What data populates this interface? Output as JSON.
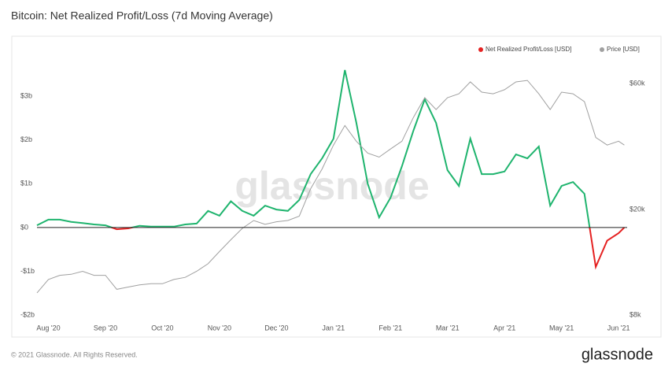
{
  "chart_data": {
    "type": "line",
    "title": "Bitcoin: Net Realized Profit/Loss (7d Moving Average)",
    "watermark": "glassnode",
    "footer": "© 2021 Glassnode. All Rights Reserved.",
    "logo": "glassnode",
    "x": [
      -0.2,
      0,
      0.2,
      0.4,
      0.6,
      0.8,
      1.0,
      1.2,
      1.4,
      1.6,
      1.8,
      2.0,
      2.2,
      2.4,
      2.6,
      2.8,
      3.0,
      3.2,
      3.4,
      3.6,
      3.8,
      4.0,
      4.2,
      4.4,
      4.6,
      4.8,
      5.0,
      5.2,
      5.4,
      5.6,
      5.8,
      6.0,
      6.2,
      6.4,
      6.6,
      6.8,
      7.0,
      7.2,
      7.4,
      7.6,
      7.8,
      8.0,
      8.2,
      8.4,
      8.6,
      8.8,
      9.0,
      9.2,
      9.4,
      9.6,
      9.8,
      10.0,
      10.1
    ],
    "xlim": [
      -0.2,
      10.15
    ],
    "xticks": [
      {
        "value": 0,
        "label": "Aug '20"
      },
      {
        "value": 1,
        "label": "Sep '20"
      },
      {
        "value": 2,
        "label": "Oct '20"
      },
      {
        "value": 3,
        "label": "Nov '20"
      },
      {
        "value": 4,
        "label": "Dec '20"
      },
      {
        "value": 5,
        "label": "Jan '21"
      },
      {
        "value": 6,
        "label": "Feb '21"
      },
      {
        "value": 7,
        "label": "Mar '21"
      },
      {
        "value": 8,
        "label": "Apr '21"
      },
      {
        "value": 9,
        "label": "May '21"
      },
      {
        "value": 10,
        "label": "Jun '21"
      }
    ],
    "ylim": [
      -2000000000,
      4300000000
    ],
    "yticks": [
      {
        "value": -2000000000,
        "label": "-$2b"
      },
      {
        "value": -1000000000,
        "label": "-$1b"
      },
      {
        "value": 0,
        "label": "$0"
      },
      {
        "value": 1000000000,
        "label": "$1b"
      },
      {
        "value": 2000000000,
        "label": "$2b"
      },
      {
        "value": 3000000000,
        "label": "$3b"
      }
    ],
    "y2lim": [
      8000,
      88000
    ],
    "y2scale": "log",
    "y2ticks": [
      {
        "value": 8000,
        "label": "$8k"
      },
      {
        "value": 20000,
        "label": "$20k"
      },
      {
        "value": 60000,
        "label": "$60k"
      }
    ],
    "grid": false,
    "legend": "top-right",
    "series": [
      {
        "name": "Net Realized Profit/Loss [USD]",
        "color": "#e52222",
        "positive_color": "#1fb46e",
        "values": [
          50000000,
          180000000,
          180000000,
          130000000,
          100000000,
          70000000,
          50000000,
          -40000000,
          -20000000,
          40000000,
          20000000,
          20000000,
          20000000,
          70000000,
          90000000,
          380000000,
          270000000,
          600000000,
          380000000,
          270000000,
          500000000,
          410000000,
          380000000,
          630000000,
          1220000000,
          1580000000,
          2030000000,
          3600000000,
          2400000000,
          1000000000,
          230000000,
          680000000,
          1400000000,
          2210000000,
          2930000000,
          2390000000,
          1310000000,
          950000000,
          2030000000,
          1220000000,
          1220000000,
          1280000000,
          1670000000,
          1580000000,
          1850000000,
          500000000,
          950000000,
          1040000000,
          770000000,
          -900000000,
          -300000000,
          -130000000,
          0
        ]
      },
      {
        "name": "Price [USD]",
        "color": "#a0a0a0",
        "axis": "y2",
        "values": [
          9700,
          10900,
          11300,
          11400,
          11700,
          11300,
          11300,
          10000,
          10200,
          10400,
          10500,
          10500,
          10900,
          11100,
          11700,
          12500,
          13900,
          15400,
          17000,
          18200,
          17600,
          18000,
          18200,
          18900,
          24000,
          28500,
          35100,
          41600,
          36300,
          32700,
          31600,
          33900,
          36300,
          44600,
          53000,
          47800,
          53000,
          54800,
          60800,
          55600,
          54800,
          56800,
          60800,
          61600,
          54800,
          47800,
          55600,
          54800,
          51200,
          37500,
          35100,
          36300,
          35100
        ]
      }
    ]
  }
}
